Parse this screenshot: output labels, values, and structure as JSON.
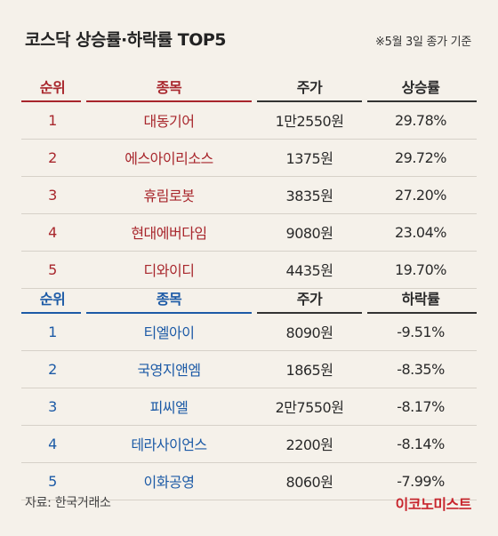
{
  "title": "코스닥 상승률·하락률 TOP5",
  "note": "※5월 3일 종가 기준",
  "chart_data": [
    {
      "type": "table",
      "name": "상승률",
      "columns": [
        "순위",
        "종목",
        "주가",
        "상승률"
      ],
      "rows": [
        [
          "1",
          "대동기어",
          "1만2550원",
          "29.78%"
        ],
        [
          "2",
          "에스아이리소스",
          "1375원",
          "29.72%"
        ],
        [
          "3",
          "휴림로봇",
          "3835원",
          "27.20%"
        ],
        [
          "4",
          "현대에버다임",
          "9080원",
          "23.04%"
        ],
        [
          "5",
          "디와이디",
          "4435원",
          "19.70%"
        ]
      ]
    },
    {
      "type": "table",
      "name": "하락률",
      "columns": [
        "순위",
        "종목",
        "주가",
        "하락률"
      ],
      "rows": [
        [
          "1",
          "티엘아이",
          "8090원",
          "-9.51%"
        ],
        [
          "2",
          "국영지앤엠",
          "1865원",
          "-8.35%"
        ],
        [
          "3",
          "피씨엘",
          "2만7550원",
          "-8.17%"
        ],
        [
          "4",
          "테라사이언스",
          "2200원",
          "-8.14%"
        ],
        [
          "5",
          "이화공영",
          "8060원",
          "-7.99%"
        ]
      ]
    }
  ],
  "source": "자료: 한국거래소",
  "logo": "이코노미스트",
  "colors": {
    "rise": "#a8262c",
    "fall": "#1c5aa6",
    "background": "#f5f1ea",
    "logo": "#c8252d"
  }
}
